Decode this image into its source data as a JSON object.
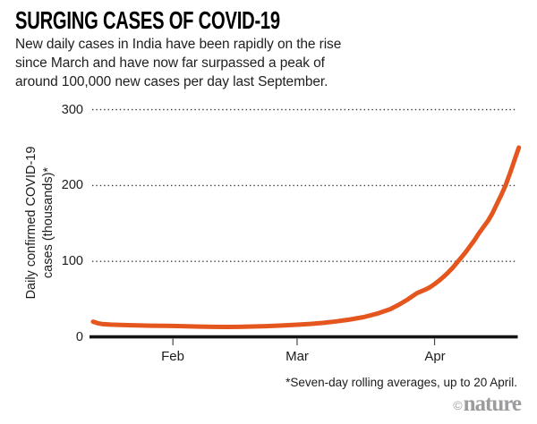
{
  "header": {
    "title": "SURGING CASES OF COVID-19",
    "subtitle_lines": [
      "New daily cases in India have been rapidly on the rise",
      "since March and have now far surpassed a peak of",
      "around 100,000 new cases per day last September."
    ]
  },
  "chart_data": {
    "type": "line",
    "title": "SURGING CASES OF COVID-19",
    "ylabel_lines": [
      "Daily confirmed COVID-19",
      "cases (thousands)*"
    ],
    "ylabel": "Daily confirmed COVID-19 cases (thousands)*",
    "xlabel": "",
    "ylim": [
      0,
      300
    ],
    "y_ticks": [
      300,
      200,
      100,
      0
    ],
    "x_ticks": [
      {
        "label": "Feb",
        "day": 18
      },
      {
        "label": "Mar",
        "day": 46
      },
      {
        "label": "Apr",
        "day": 77
      }
    ],
    "x_unit": "day index along x-axis: 0 = chart start (mid-Jan), 18 = 1 Feb, 46 = 1 Mar, 77 = 1 Apr, 96 = 20 Apr (chart end)",
    "grid": "horizontal dotted gridlines at 100, 200, 300",
    "legend": "none",
    "series": [
      {
        "name": "Daily confirmed COVID-19 cases in India, seven-day rolling average (thousands)",
        "color": "#E5561F",
        "points": [
          [
            0,
            20.5
          ],
          [
            1,
            18.5
          ],
          [
            2,
            17.5
          ],
          [
            4,
            16.6
          ],
          [
            7,
            16.0
          ],
          [
            10,
            15.6
          ],
          [
            13,
            15.2
          ],
          [
            16,
            15.0
          ],
          [
            18,
            14.8
          ],
          [
            21,
            14.4
          ],
          [
            24,
            14.0
          ],
          [
            27,
            13.7
          ],
          [
            30,
            13.6
          ],
          [
            33,
            13.7
          ],
          [
            36,
            14.1
          ],
          [
            39,
            14.6
          ],
          [
            42,
            15.3
          ],
          [
            46,
            16.5
          ],
          [
            49,
            17.6
          ],
          [
            52,
            19.0
          ],
          [
            55,
            21.0
          ],
          [
            58,
            23.5
          ],
          [
            61,
            26.5
          ],
          [
            64,
            31.0
          ],
          [
            67,
            37.0
          ],
          [
            69,
            43.0
          ],
          [
            71,
            50.0
          ],
          [
            73,
            58.0
          ],
          [
            74,
            60.5
          ],
          [
            75,
            63.0
          ],
          [
            76,
            66.0
          ],
          [
            77,
            70.0
          ],
          [
            78,
            74.5
          ],
          [
            79,
            79.5
          ],
          [
            80,
            85.0
          ],
          [
            81,
            91.0
          ],
          [
            82,
            98.0
          ],
          [
            83,
            105.0
          ],
          [
            84,
            112.0
          ],
          [
            85,
            120.0
          ],
          [
            86,
            128.0
          ],
          [
            87,
            137.0
          ],
          [
            88,
            145.0
          ],
          [
            89,
            153.0
          ],
          [
            90,
            163.0
          ],
          [
            91,
            175.0
          ],
          [
            92,
            187.0
          ],
          [
            93,
            200.0
          ],
          [
            94,
            216.0
          ],
          [
            95,
            233.0
          ],
          [
            96,
            250.0
          ]
        ]
      }
    ]
  },
  "colors": {
    "line": "#E5561F",
    "axis": "#141414",
    "grid_dots": "#3a3a3a",
    "tick_mark": "#4a4a4a",
    "text": "#1c1c1c",
    "credit_gray": "#9c9c9e"
  },
  "footer": {
    "footnote": "*Seven-day rolling averages, up to 20 April.",
    "credit_symbol": "©",
    "credit_name": "nature"
  }
}
